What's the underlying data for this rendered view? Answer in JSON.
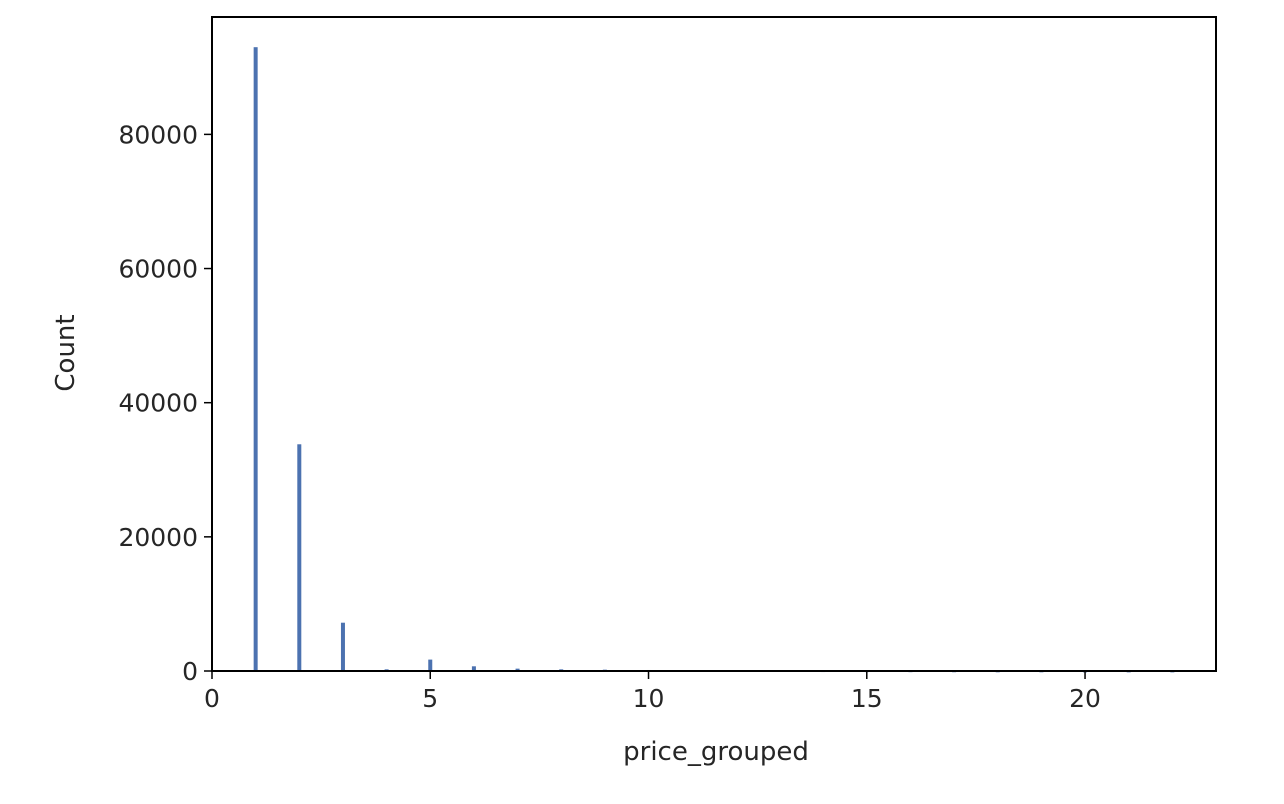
{
  "chart_data": {
    "type": "bar",
    "xlabel": "price_grouped",
    "ylabel": "Count",
    "xlim": [
      0,
      23
    ],
    "ylim": [
      0,
      97500
    ],
    "xticks": [
      0,
      5,
      10,
      15,
      20
    ],
    "yticks": [
      0,
      20000,
      40000,
      60000,
      80000
    ],
    "grid": false,
    "bar_color": "#4c72b0",
    "x": [
      1,
      2,
      3,
      4,
      5,
      6,
      7,
      8,
      9,
      10,
      11,
      12,
      13,
      14,
      15,
      16,
      17,
      18,
      19,
      20,
      21,
      22
    ],
    "values": [
      93000,
      33800,
      7200,
      250,
      1700,
      700,
      350,
      250,
      200,
      150,
      100,
      100,
      80,
      70,
      60,
      50,
      40,
      30,
      30,
      20,
      20,
      20
    ]
  }
}
